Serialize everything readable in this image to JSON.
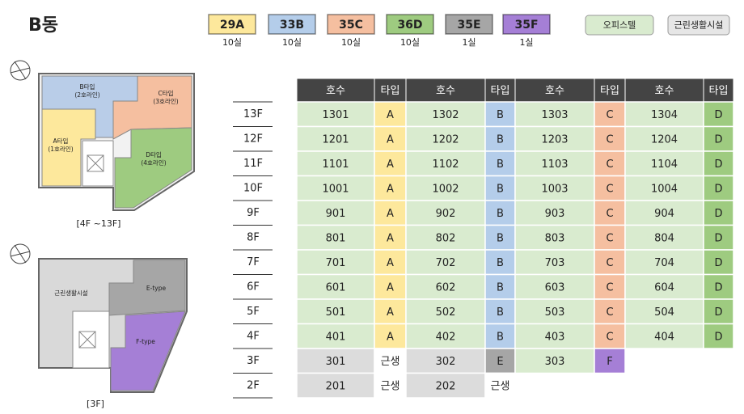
{
  "title": "B동",
  "legend": [
    {
      "code": "29A",
      "count": "10실",
      "color": "#fde89c"
    },
    {
      "code": "33B",
      "count": "10실",
      "color": "#b4cdea"
    },
    {
      "code": "35C",
      "count": "10실",
      "color": "#f5bfa0"
    },
    {
      "code": "36D",
      "count": "10실",
      "color": "#9ecb80"
    },
    {
      "code": "35E",
      "count": "1실",
      "color": "#a6a6a6"
    },
    {
      "code": "35F",
      "count": "1실",
      "color": "#a57fd6"
    }
  ],
  "uses": [
    {
      "label": "오피스텔",
      "color": "#d9ebcf"
    },
    {
      "label": "근린생활시설",
      "color": "#e6e6e6"
    }
  ],
  "plans": [
    {
      "labels": [
        {
          "name": "B타입",
          "line": "(2호라인)"
        },
        {
          "name": "C타입",
          "line": "(3호라인)"
        },
        {
          "name": "A타입",
          "line": "(1호라인)"
        },
        {
          "name": "D타입",
          "line": "(4호라인)"
        }
      ],
      "caption": "[4F ~13F]"
    },
    {
      "labels": [
        {
          "name": "근린생활시설"
        },
        {
          "name": "E-type"
        },
        {
          "name": "F-type"
        }
      ],
      "caption": "[3F]"
    }
  ],
  "table": {
    "header": [
      "호수",
      "타입",
      "호수",
      "타입",
      "호수",
      "타입",
      "호수",
      "타입"
    ],
    "rows": [
      {
        "floor": "13F",
        "cells": [
          {
            "value": 1301,
            "color": "#d9ebcf"
          },
          {
            "value": "A",
            "color": "#fde89c"
          },
          {
            "value": 1302,
            "color": "#d9ebcf"
          },
          {
            "value": "B",
            "color": "#b4cdea"
          },
          {
            "value": 1303,
            "color": "#d9ebcf"
          },
          {
            "value": "C",
            "color": "#f5bfa0"
          },
          {
            "value": 1304,
            "color": "#d9ebcf"
          },
          {
            "value": "D",
            "color": "#9ecb80"
          }
        ]
      },
      {
        "floor": "12F",
        "cells": [
          {
            "value": 1201,
            "color": "#d9ebcf"
          },
          {
            "value": "A",
            "color": "#fde89c"
          },
          {
            "value": 1202,
            "color": "#d9ebcf"
          },
          {
            "value": "B",
            "color": "#b4cdea"
          },
          {
            "value": 1203,
            "color": "#d9ebcf"
          },
          {
            "value": "C",
            "color": "#f5bfa0"
          },
          {
            "value": 1204,
            "color": "#d9ebcf"
          },
          {
            "value": "D",
            "color": "#9ecb80"
          }
        ]
      },
      {
        "floor": "11F",
        "cells": [
          {
            "value": 1101,
            "color": "#d9ebcf"
          },
          {
            "value": "A",
            "color": "#fde89c"
          },
          {
            "value": 1102,
            "color": "#d9ebcf"
          },
          {
            "value": "B",
            "color": "#b4cdea"
          },
          {
            "value": 1103,
            "color": "#d9ebcf"
          },
          {
            "value": "C",
            "color": "#f5bfa0"
          },
          {
            "value": 1104,
            "color": "#d9ebcf"
          },
          {
            "value": "D",
            "color": "#9ecb80"
          }
        ]
      },
      {
        "floor": "10F",
        "cells": [
          {
            "value": 1001,
            "color": "#d9ebcf"
          },
          {
            "value": "A",
            "color": "#fde89c"
          },
          {
            "value": 1002,
            "color": "#d9ebcf"
          },
          {
            "value": "B",
            "color": "#b4cdea"
          },
          {
            "value": 1003,
            "color": "#d9ebcf"
          },
          {
            "value": "C",
            "color": "#f5bfa0"
          },
          {
            "value": 1004,
            "color": "#d9ebcf"
          },
          {
            "value": "D",
            "color": "#9ecb80"
          }
        ]
      },
      {
        "floor": "9F",
        "cells": [
          {
            "value": 901,
            "color": "#d9ebcf"
          },
          {
            "value": "A",
            "color": "#fde89c"
          },
          {
            "value": 902,
            "color": "#d9ebcf"
          },
          {
            "value": "B",
            "color": "#b4cdea"
          },
          {
            "value": 903,
            "color": "#d9ebcf"
          },
          {
            "value": "C",
            "color": "#f5bfa0"
          },
          {
            "value": 904,
            "color": "#d9ebcf"
          },
          {
            "value": "D",
            "color": "#9ecb80"
          }
        ]
      },
      {
        "floor": "8F",
        "cells": [
          {
            "value": 801,
            "color": "#d9ebcf"
          },
          {
            "value": "A",
            "color": "#fde89c"
          },
          {
            "value": 802,
            "color": "#d9ebcf"
          },
          {
            "value": "B",
            "color": "#b4cdea"
          },
          {
            "value": 803,
            "color": "#d9ebcf"
          },
          {
            "value": "C",
            "color": "#f5bfa0"
          },
          {
            "value": 804,
            "color": "#d9ebcf"
          },
          {
            "value": "D",
            "color": "#9ecb80"
          }
        ]
      },
      {
        "floor": "7F",
        "cells": [
          {
            "value": 701,
            "color": "#d9ebcf"
          },
          {
            "value": "A",
            "color": "#fde89c"
          },
          {
            "value": 702,
            "color": "#d9ebcf"
          },
          {
            "value": "B",
            "color": "#b4cdea"
          },
          {
            "value": 703,
            "color": "#d9ebcf"
          },
          {
            "value": "C",
            "color": "#f5bfa0"
          },
          {
            "value": 704,
            "color": "#d9ebcf"
          },
          {
            "value": "D",
            "color": "#9ecb80"
          }
        ]
      },
      {
        "floor": "6F",
        "cells": [
          {
            "value": 601,
            "color": "#d9ebcf"
          },
          {
            "value": "A",
            "color": "#fde89c"
          },
          {
            "value": 602,
            "color": "#d9ebcf"
          },
          {
            "value": "B",
            "color": "#b4cdea"
          },
          {
            "value": 603,
            "color": "#d9ebcf"
          },
          {
            "value": "C",
            "color": "#f5bfa0"
          },
          {
            "value": 604,
            "color": "#d9ebcf"
          },
          {
            "value": "D",
            "color": "#9ecb80"
          }
        ]
      },
      {
        "floor": "5F",
        "cells": [
          {
            "value": 501,
            "color": "#d9ebcf"
          },
          {
            "value": "A",
            "color": "#fde89c"
          },
          {
            "value": 502,
            "color": "#d9ebcf"
          },
          {
            "value": "B",
            "color": "#b4cdea"
          },
          {
            "value": 503,
            "color": "#d9ebcf"
          },
          {
            "value": "C",
            "color": "#f5bfa0"
          },
          {
            "value": 504,
            "color": "#d9ebcf"
          },
          {
            "value": "D",
            "color": "#9ecb80"
          }
        ]
      },
      {
        "floor": "4F",
        "cells": [
          {
            "value": 401,
            "color": "#d9ebcf"
          },
          {
            "value": "A",
            "color": "#fde89c"
          },
          {
            "value": 402,
            "color": "#d9ebcf"
          },
          {
            "value": "B",
            "color": "#b4cdea"
          },
          {
            "value": 403,
            "color": "#d9ebcf"
          },
          {
            "value": "C",
            "color": "#f5bfa0"
          },
          {
            "value": 404,
            "color": "#d9ebcf"
          },
          {
            "value": "D",
            "color": "#9ecb80"
          }
        ]
      },
      {
        "floor": "3F",
        "cells": [
          {
            "value": 301,
            "color": "#dcdcdc"
          },
          {
            "value": "근생",
            "color": "#ffffff"
          },
          {
            "value": 302,
            "color": "#dcdcdc"
          },
          {
            "value": "E",
            "color": "#a6a6a6"
          },
          {
            "value": 303,
            "color": "#d9ebcf"
          },
          {
            "value": "F",
            "color": "#a57fd6"
          }
        ]
      },
      {
        "floor": "2F",
        "cells": [
          {
            "value": 201,
            "color": "#dcdcdc"
          },
          {
            "value": "근생",
            "color": "#ffffff"
          },
          {
            "value": 202,
            "color": "#dcdcdc"
          },
          {
            "value": "근생",
            "color": "#ffffff"
          }
        ]
      }
    ]
  }
}
